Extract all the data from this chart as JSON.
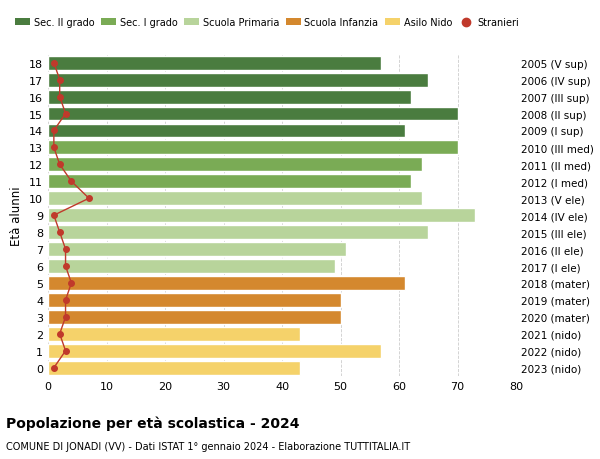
{
  "ages": [
    18,
    17,
    16,
    15,
    14,
    13,
    12,
    11,
    10,
    9,
    8,
    7,
    6,
    5,
    4,
    3,
    2,
    1,
    0
  ],
  "values": [
    57,
    65,
    62,
    70,
    61,
    70,
    64,
    62,
    64,
    73,
    65,
    51,
    49,
    61,
    50,
    50,
    43,
    57,
    43
  ],
  "right_labels": [
    "2005 (V sup)",
    "2006 (IV sup)",
    "2007 (III sup)",
    "2008 (II sup)",
    "2009 (I sup)",
    "2010 (III med)",
    "2011 (II med)",
    "2012 (I med)",
    "2013 (V ele)",
    "2014 (IV ele)",
    "2015 (III ele)",
    "2016 (II ele)",
    "2017 (I ele)",
    "2018 (mater)",
    "2019 (mater)",
    "2020 (mater)",
    "2021 (nido)",
    "2022 (nido)",
    "2023 (nido)"
  ],
  "bar_colors": [
    "#4a7c3f",
    "#4a7c3f",
    "#4a7c3f",
    "#4a7c3f",
    "#4a7c3f",
    "#7aab55",
    "#7aab55",
    "#7aab55",
    "#b8d49b",
    "#b8d49b",
    "#b8d49b",
    "#b8d49b",
    "#b8d49b",
    "#d4882e",
    "#d4882e",
    "#d4882e",
    "#f5d26a",
    "#f5d26a",
    "#f5d26a"
  ],
  "stranieri_x": [
    1,
    2,
    2,
    3,
    1,
    1,
    2,
    4,
    7,
    1,
    2,
    3,
    3,
    4,
    3,
    3,
    2,
    3,
    1
  ],
  "legend_labels": [
    "Sec. II grado",
    "Sec. I grado",
    "Scuola Primaria",
    "Scuola Infanzia",
    "Asilo Nido",
    "Stranieri"
  ],
  "legend_colors": [
    "#4a7c3f",
    "#7aab55",
    "#b8d49b",
    "#d4882e",
    "#f5d26a",
    "#c0392b"
  ],
  "title": "Popolazione per età scolastica - 2024",
  "subtitle": "COMUNE DI JONADI (VV) - Dati ISTAT 1° gennaio 2024 - Elaborazione TUTTITALIA.IT",
  "ylabel": "Età alunni",
  "xlim": [
    0,
    80
  ],
  "xticks": [
    0,
    10,
    20,
    30,
    40,
    50,
    60,
    70,
    80
  ],
  "background_color": "#ffffff",
  "bar_edgecolor": "#ffffff",
  "stranieri_color": "#c0392b",
  "grid_color": "#cccccc"
}
